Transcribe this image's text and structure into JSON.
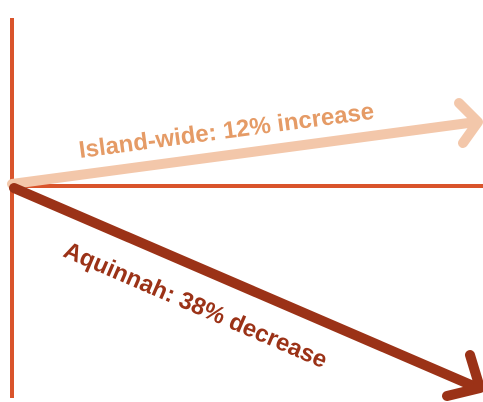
{
  "diagram": {
    "colors": {
      "axis": "#d9542b",
      "island_arrow": "#f3c7aa",
      "island_label": "#e59b66",
      "aquinnah_arrow": "#9b3217",
      "aquinnah_label": "#9b3217"
    },
    "island_wide": {
      "label": "Island-wide: 12% increase",
      "change_percent": 12,
      "direction": "increase"
    },
    "aquinnah": {
      "label": "Aquinnah: 38% decrease",
      "change_percent": -38,
      "direction": "decrease"
    }
  }
}
